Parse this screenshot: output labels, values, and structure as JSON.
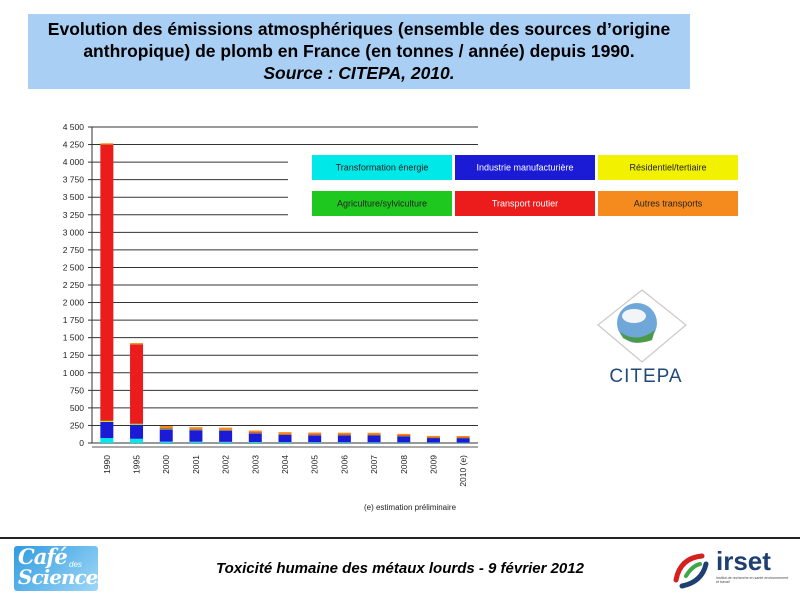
{
  "header": {
    "title_line1": "Evolution des émissions atmosphériques (ensemble des sources d’origine",
    "title_line2": "anthropique) de plomb en France (en tonnes / année) depuis 1990.",
    "source": "Source : CITEPA, 2010."
  },
  "chart_data": {
    "type": "bar",
    "stacked": true,
    "categories": [
      "1990",
      "1995",
      "2000",
      "2001",
      "2002",
      "2003",
      "2004",
      "2005",
      "2006",
      "2007",
      "2008",
      "2009",
      "2010 (e)"
    ],
    "series": [
      {
        "name": "Transformation énergie",
        "color": "#00e8e8",
        "values": [
          70,
          60,
          20,
          18,
          16,
          14,
          12,
          11,
          10,
          9,
          8,
          7,
          6
        ]
      },
      {
        "name": "Industrie manufacturière",
        "color": "#1b1bd6",
        "values": [
          230,
          200,
          175,
          165,
          160,
          125,
          105,
          100,
          100,
          100,
          90,
          65,
          65
        ]
      },
      {
        "name": "Résidentiel/tertiaire",
        "color": "#f2f200",
        "values": [
          15,
          12,
          10,
          8,
          8,
          7,
          7,
          7,
          6,
          6,
          5,
          5,
          5
        ]
      },
      {
        "name": "Agriculture/sylviculture",
        "color": "#1ec81e",
        "values": [
          3,
          3,
          2,
          2,
          2,
          2,
          2,
          2,
          2,
          2,
          2,
          2,
          2
        ]
      },
      {
        "name": "Transport routier",
        "color": "#ec1c1c",
        "values": [
          3930,
          1130,
          5,
          3,
          3,
          2,
          2,
          2,
          2,
          2,
          2,
          2,
          2
        ]
      },
      {
        "name": "Autres transports",
        "color": "#f58a1f",
        "values": [
          20,
          18,
          30,
          30,
          30,
          27,
          27,
          27,
          27,
          27,
          23,
          20,
          20
        ]
      }
    ],
    "ylim": [
      0,
      4500
    ],
    "yticks": [
      "0",
      "250",
      "500",
      "750",
      "1 000",
      "1 250",
      "1 500",
      "1 750",
      "2 000",
      "2 250",
      "2 500",
      "2 750",
      "3 000",
      "3 250",
      "3 500",
      "3 750",
      "4 000",
      "4 250",
      "4 500"
    ],
    "xlabel": "",
    "ylabel": "",
    "grid": true,
    "legend_position": "top-right",
    "note": "(e) estimation préliminaire"
  },
  "logos": {
    "citepa": "CITEPA",
    "cafe_line1": "Café",
    "cafe_small": "des",
    "cafe_line2": "Sciences",
    "irset": "irset",
    "irset_sub": "Institut de recherche en santé environnement et travail"
  },
  "footer": {
    "text": "Toxicité humaine des métaux lourds - 9 février 2012"
  }
}
